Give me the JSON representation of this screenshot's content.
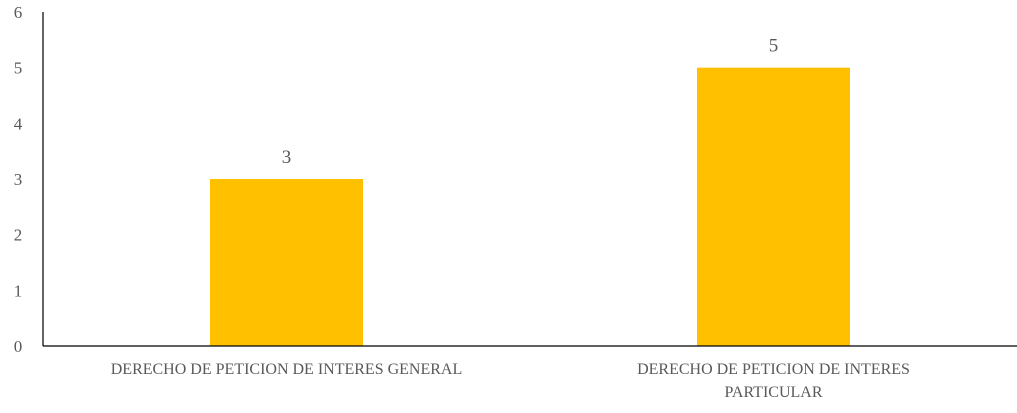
{
  "chart_data": {
    "type": "bar",
    "categories": [
      [
        "DERECHO DE PETICION DE INTERES GENERAL"
      ],
      [
        "DERECHO DE PETICION DE INTERES",
        "PARTICULAR"
      ]
    ],
    "values": [
      3,
      5
    ],
    "data_labels": [
      "3",
      "5"
    ],
    "y_ticks": [
      "0",
      "1",
      "2",
      "3",
      "4",
      "5",
      "6"
    ],
    "y_tick_values": [
      0,
      1,
      2,
      3,
      4,
      5,
      6
    ],
    "ylim": [
      0,
      6
    ],
    "title": "",
    "xlabel": "",
    "ylabel": "",
    "grid": false,
    "legend": "none",
    "bar_color": "#FFC000",
    "axis_color": "#000000",
    "text_color": "#595959"
  }
}
